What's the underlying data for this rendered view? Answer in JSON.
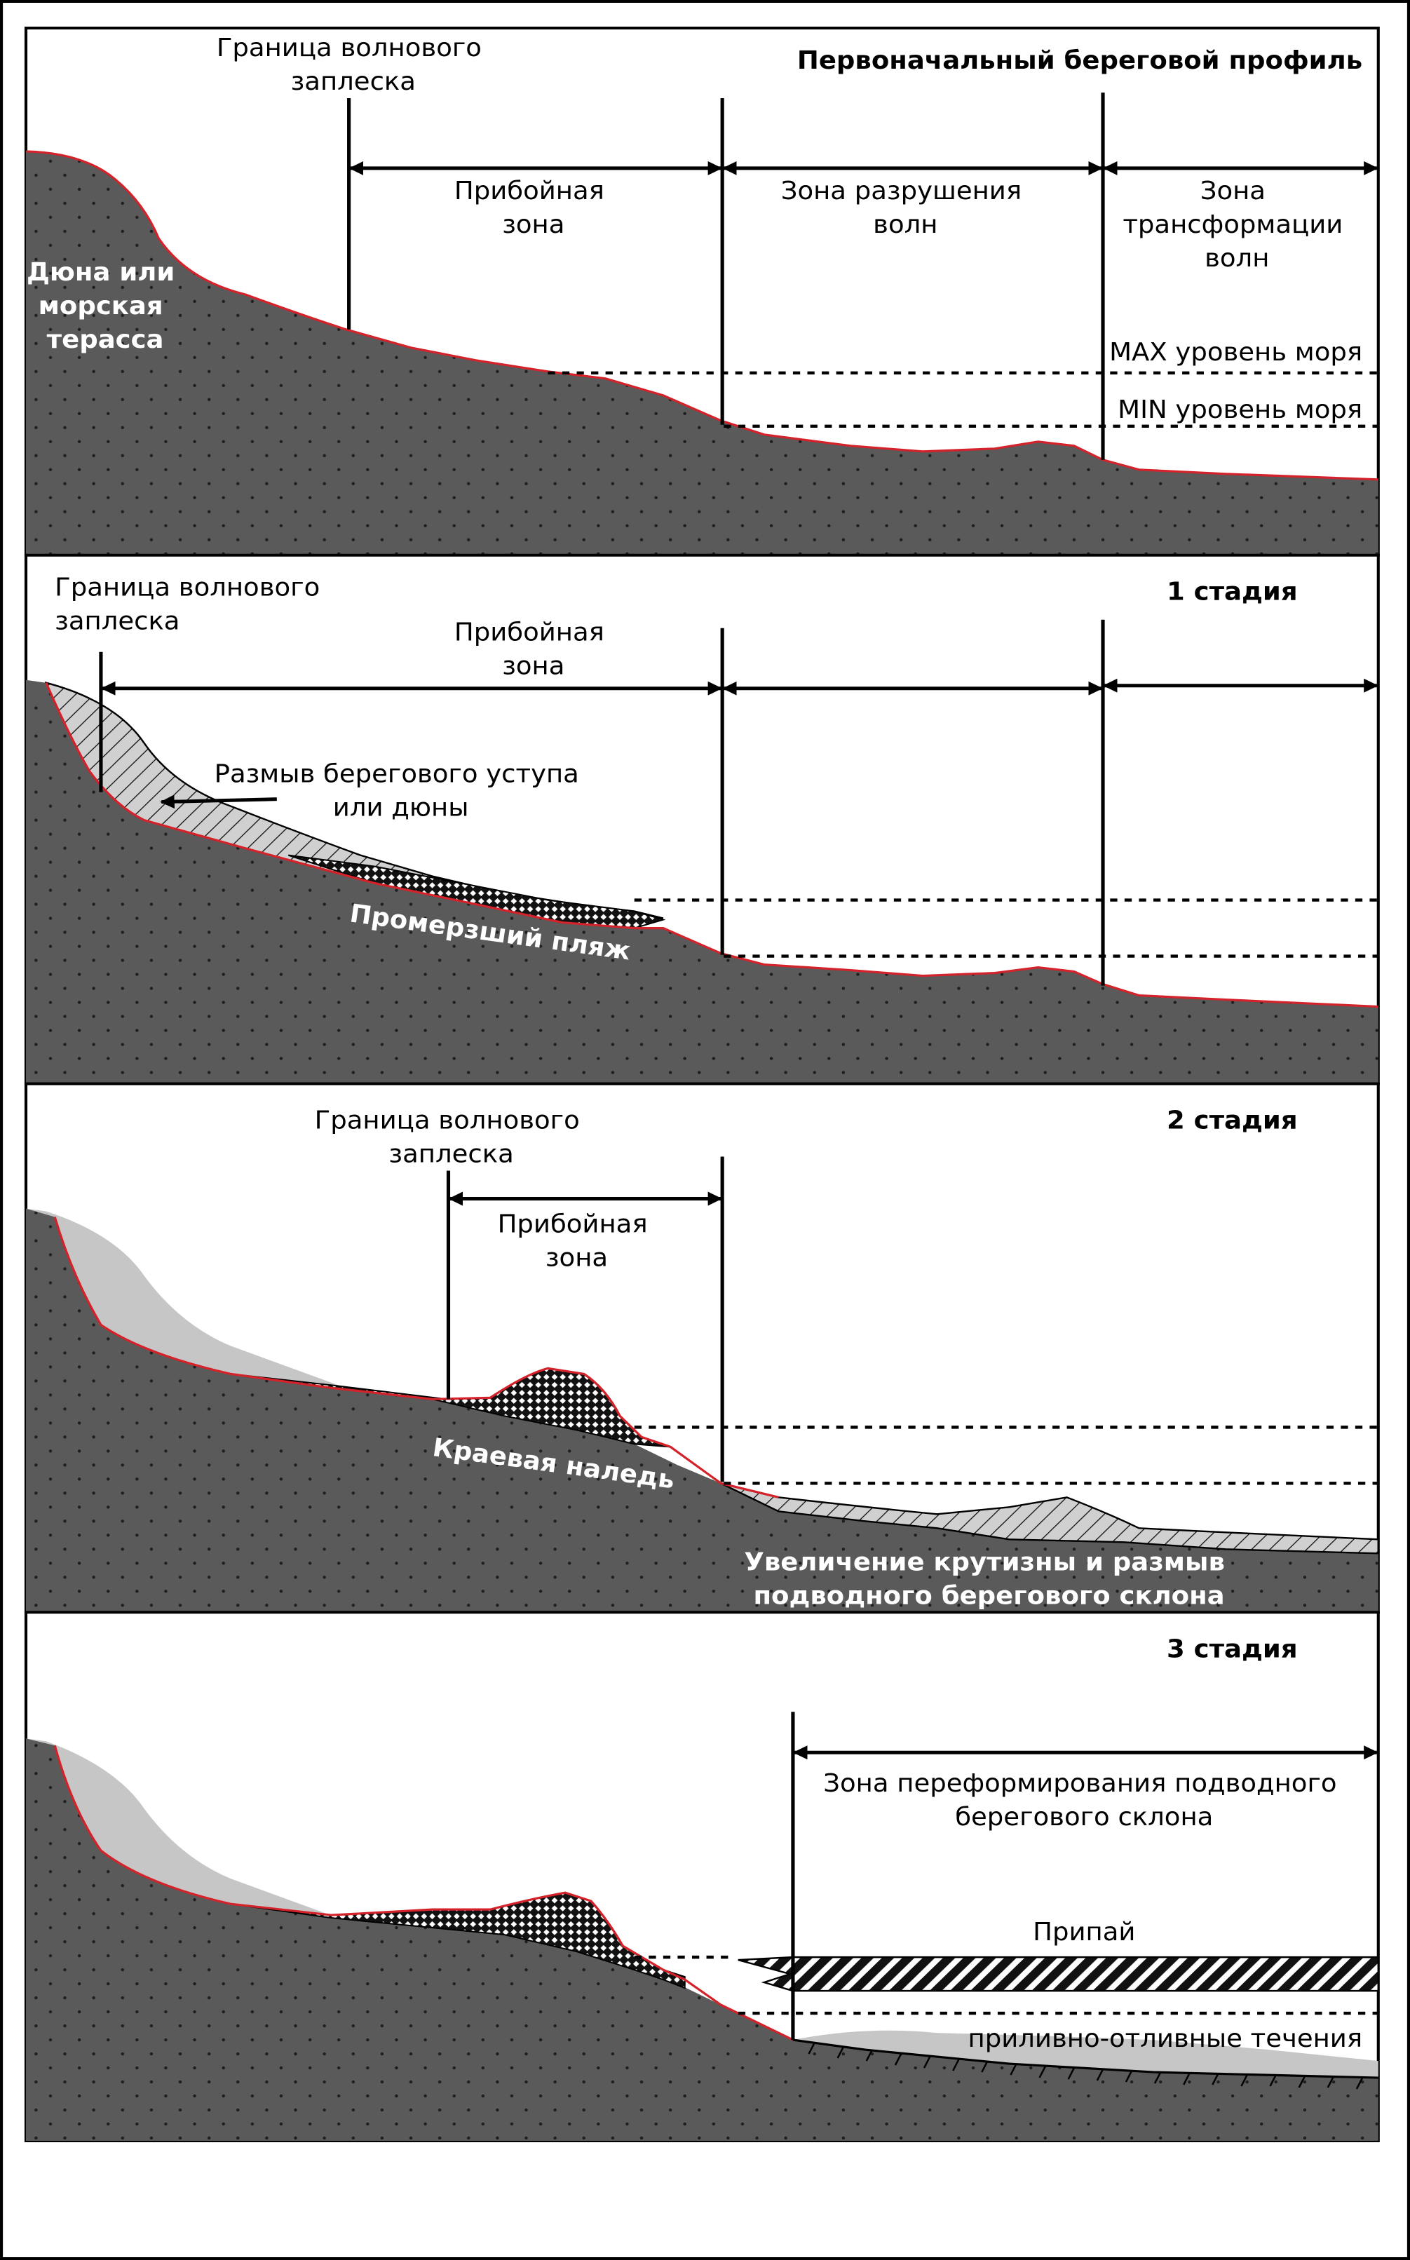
{
  "colors": {
    "ground": "#5a5a5a",
    "ground_dots": "#1e1e1e",
    "profile_line": "#d4222a",
    "light_eroded": "#c6c6c6",
    "hatch_fill": "#d0d0d0",
    "border": "#000000"
  },
  "panels": [
    {
      "title": "Первоначальный береговой профиль",
      "swash_boundary": "Граница волнового заплеска",
      "surf_zone": "Прибойная зона",
      "breaking_zone": "Зона разрушения волн",
      "transformation_zone": "Зона трансформации волн",
      "dune": "Дюна или морская терасса",
      "max_level": "MAX уровень моря",
      "min_level": "MIN уровень моря"
    },
    {
      "title": "1 стадия",
      "swash_boundary": "Граница волнового заплеска",
      "surf_zone": "Прибойная зона",
      "erosion": "Размыв берегового уступа или дюны",
      "frozen_beach": "Промерзший пляж"
    },
    {
      "title": "2 стадия",
      "swash_boundary": "Граница волнового заплеска",
      "surf_zone": "Прибойная зона",
      "ice_foot": "Краевая наледь",
      "steepening": "Увеличение крутизны и размыв подводного берегового склона"
    },
    {
      "title": "3 стадия",
      "reformation_zone": "Зона переформирования подводного берегового склона",
      "fast_ice": "Припай",
      "tidal_currents": "приливно-отливные течения"
    }
  ]
}
